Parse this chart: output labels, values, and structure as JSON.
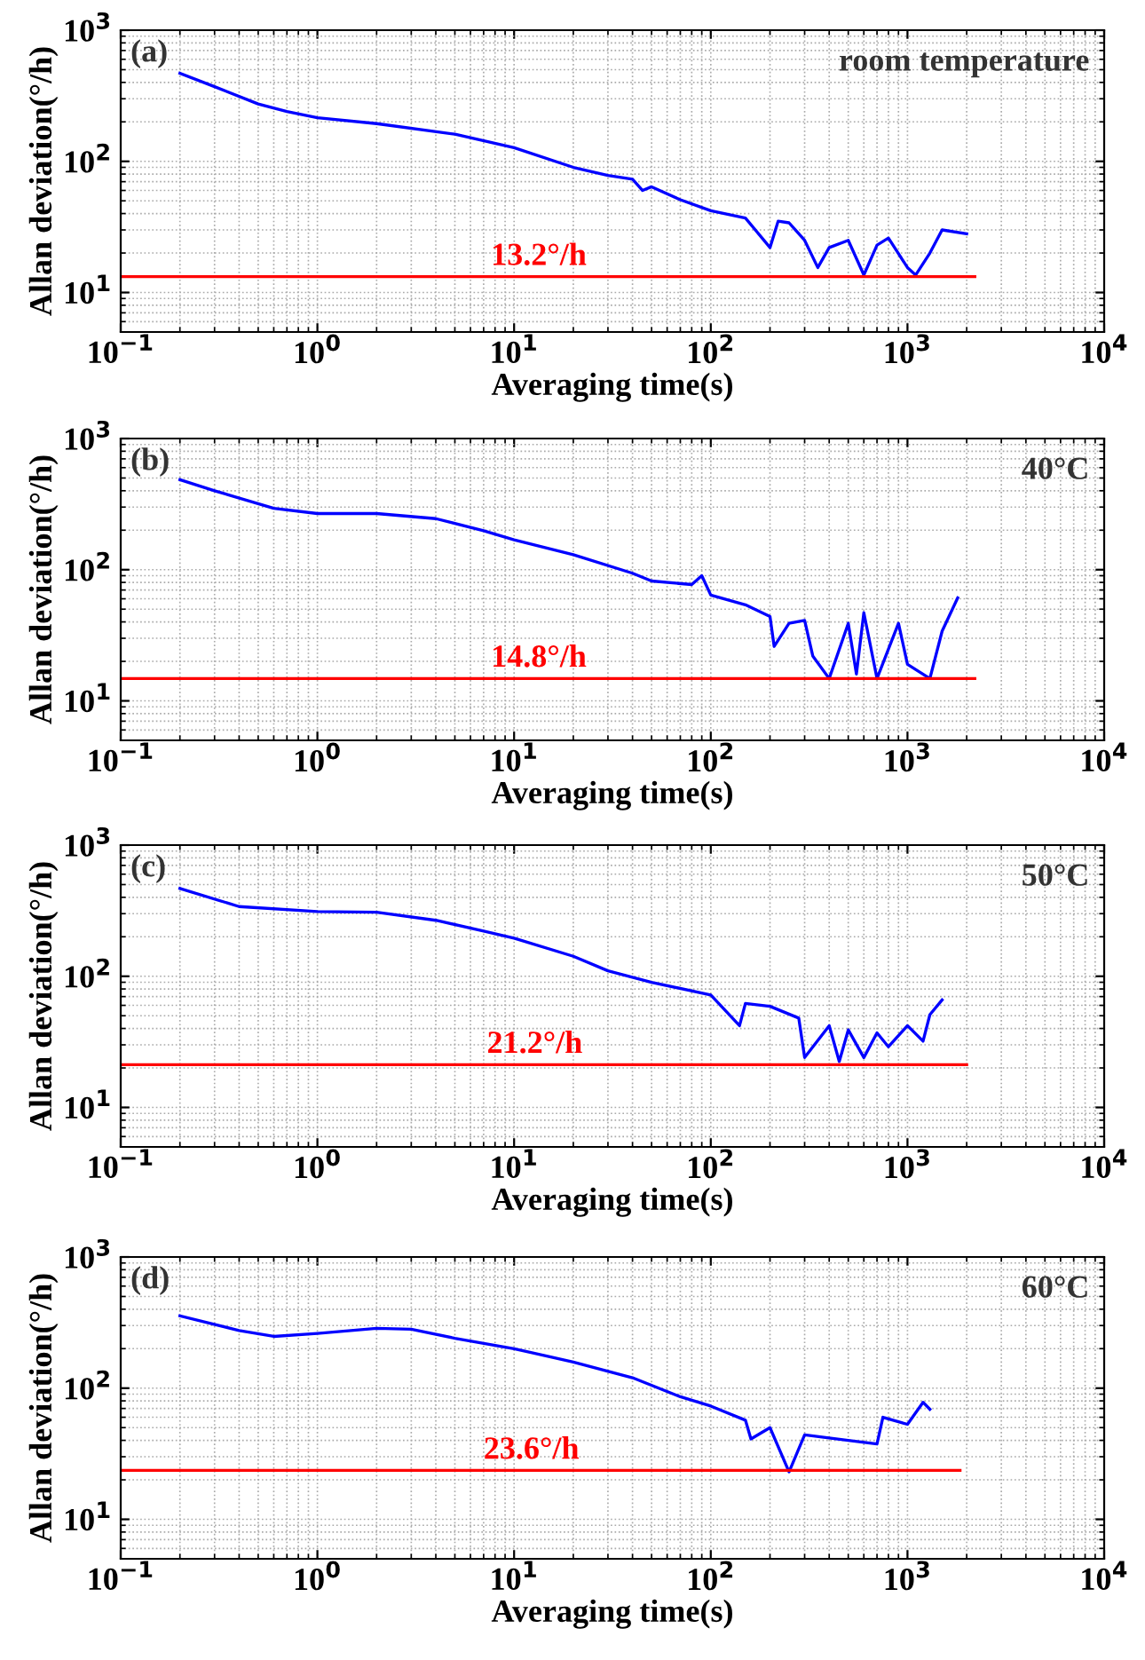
{
  "chart_data": [
    {
      "type": "line",
      "xlabel": "Averaging time(s)",
      "ylabel": "Allan deviation(°/h)",
      "log": "xy",
      "grid": true,
      "legend": false,
      "xlim": [
        0.1,
        10000
      ],
      "ylim": [
        5,
        1000
      ],
      "xticks": [
        {
          "value": 0.1,
          "label": "10$^{−1}$"
        },
        {
          "value": 1,
          "label": "10$^{0}$"
        },
        {
          "value": 10,
          "label": "10$^{1}$"
        },
        {
          "value": 100,
          "label": "10$^{2}$"
        },
        {
          "value": 1000,
          "label": "10$^{3}$"
        },
        {
          "value": 10000,
          "label": "10$^{4}$"
        }
      ],
      "yticks": [
        {
          "value": 10,
          "label": "10$^{1}$"
        },
        {
          "value": 100,
          "label": "10$^{2}$"
        },
        {
          "value": 1000,
          "label": "10$^{3}$"
        }
      ],
      "annotations": [
        "(a)",
        "room temperature"
      ],
      "series": [
        {
          "color": "#0000ff",
          "x": [
            0.2,
            0.3,
            0.5,
            0.7,
            1,
            2,
            5,
            10,
            20,
            30,
            40,
            45,
            50,
            70,
            100,
            150,
            200,
            220,
            250,
            300,
            350,
            400,
            500,
            600,
            700,
            800,
            1000,
            1100,
            1300,
            1500,
            2000
          ],
          "values": [
            470,
            371,
            274,
            240,
            215,
            194,
            161,
            127,
            90,
            78,
            73,
            60,
            64,
            51,
            42,
            37,
            22,
            35,
            34,
            25,
            15.5,
            22,
            25,
            13.6,
            23,
            26,
            15.5,
            13.6,
            20,
            30,
            28
          ]
        },
        {
          "name": "13.2°/h",
          "color": "#ff0000",
          "x": [
            0.1,
            2200
          ],
          "values": [
            13.2,
            13.2
          ]
        }
      ]
    },
    {
      "type": "line",
      "xlabel": "Averaging time(s)",
      "ylabel": "Allan deviation(°/h)",
      "log": "xy",
      "grid": true,
      "legend": false,
      "xlim": [
        0.1,
        10000
      ],
      "ylim": [
        5,
        1000
      ],
      "xticks": [
        {
          "value": 0.1,
          "label": "10$^{−1}$"
        },
        {
          "value": 1,
          "label": "10$^{0}$"
        },
        {
          "value": 10,
          "label": "10$^{1}$"
        },
        {
          "value": 100,
          "label": "10$^{2}$"
        },
        {
          "value": 1000,
          "label": "10$^{3}$"
        },
        {
          "value": 10000,
          "label": "10$^{4}$"
        }
      ],
      "yticks": [
        {
          "value": 10,
          "label": "10$^{1}$"
        },
        {
          "value": 100,
          "label": "10$^{2}$"
        },
        {
          "value": 1000,
          "label": "10$^{3}$"
        }
      ],
      "annotations": [
        "(b)",
        "40°C"
      ],
      "series": [
        {
          "color": "#0000ff",
          "x": [
            0.2,
            0.3,
            0.6,
            1,
            2,
            4,
            7,
            10,
            20,
            40,
            50,
            80,
            90,
            100,
            150,
            200,
            210,
            250,
            300,
            330,
            400,
            500,
            550,
            600,
            700,
            900,
            1000,
            1300,
            1500,
            1800
          ],
          "values": [
            485,
            400,
            294,
            268,
            268,
            245,
            198,
            169,
            130,
            94,
            82,
            77,
            90,
            64,
            54,
            44,
            26,
            39,
            41,
            22,
            14.8,
            39,
            16,
            47,
            14.8,
            39,
            19,
            14.8,
            34,
            61
          ]
        },
        {
          "name": "14.8°/h",
          "color": "#ff0000",
          "x": [
            0.1,
            2200
          ],
          "values": [
            14.8,
            14.8
          ]
        }
      ]
    },
    {
      "type": "line",
      "xlabel": "Averaging time(s)",
      "ylabel": "Allan deviation(°/h)",
      "log": "xy",
      "grid": true,
      "legend": false,
      "xlim": [
        0.1,
        10000
      ],
      "ylim": [
        5,
        1000
      ],
      "xticks": [
        {
          "value": 0.1,
          "label": "10$^{−1}$"
        },
        {
          "value": 1,
          "label": "10$^{0}$"
        },
        {
          "value": 10,
          "label": "10$^{1}$"
        },
        {
          "value": 100,
          "label": "10$^{2}$"
        },
        {
          "value": 1000,
          "label": "10$^{3}$"
        },
        {
          "value": 10000,
          "label": "10$^{4}$"
        }
      ],
      "yticks": [
        {
          "value": 10,
          "label": "10$^{1}$"
        },
        {
          "value": 100,
          "label": "10$^{2}$"
        },
        {
          "value": 1000,
          "label": "10$^{3}$"
        }
      ],
      "annotations": [
        "(c)",
        "50°C"
      ],
      "series": [
        {
          "color": "#0000ff",
          "x": [
            0.2,
            0.4,
            1,
            2,
            4,
            7,
            10,
            20,
            30,
            50,
            100,
            140,
            150,
            200,
            280,
            300,
            400,
            450,
            500,
            600,
            700,
            800,
            1000,
            1200,
            1300,
            1500
          ],
          "values": [
            467,
            340,
            311,
            308,
            267,
            221,
            195,
            142,
            110,
            90,
            72,
            42,
            62,
            59,
            48,
            24,
            42,
            22.4,
            39,
            24,
            37,
            29,
            42,
            32,
            51,
            66
          ]
        },
        {
          "name": "21.2°/h",
          "color": "#ff0000",
          "x": [
            0.1,
            2000
          ],
          "values": [
            21.2,
            21.2
          ]
        }
      ]
    },
    {
      "type": "line",
      "xlabel": "Averaging time(s)",
      "ylabel": "Allan deviation(°/h)",
      "log": "xy",
      "grid": true,
      "legend": false,
      "xlim": [
        0.1,
        10000
      ],
      "ylim": [
        5,
        1000
      ],
      "xticks": [
        {
          "value": 0.1,
          "label": "10$^{−1}$"
        },
        {
          "value": 1,
          "label": "10$^{0}$"
        },
        {
          "value": 10,
          "label": "10$^{1}$"
        },
        {
          "value": 100,
          "label": "10$^{2}$"
        },
        {
          "value": 1000,
          "label": "10$^{3}$"
        },
        {
          "value": 10000,
          "label": "10$^{4}$"
        }
      ],
      "yticks": [
        {
          "value": 10,
          "label": "10$^{1}$"
        },
        {
          "value": 100,
          "label": "10$^{2}$"
        },
        {
          "value": 1000,
          "label": "10$^{3}$"
        }
      ],
      "annotations": [
        "(d)",
        "60°C"
      ],
      "series": [
        {
          "color": "#0000ff",
          "x": [
            0.2,
            0.4,
            0.6,
            1,
            2,
            3,
            5,
            10,
            20,
            40,
            70,
            100,
            150,
            160,
            200,
            250,
            300,
            500,
            700,
            750,
            1000,
            1200,
            1300
          ],
          "values": [
            356,
            275,
            248,
            261,
            286,
            281,
            240,
            200,
            158,
            120,
            86,
            73,
            57,
            41,
            50,
            23,
            44,
            40,
            37.5,
            60,
            53,
            78,
            69
          ]
        },
        {
          "name": "23.6°/h",
          "color": "#ff0000",
          "x": [
            0.1,
            1850
          ],
          "values": [
            23.6,
            23.6
          ]
        }
      ]
    }
  ]
}
